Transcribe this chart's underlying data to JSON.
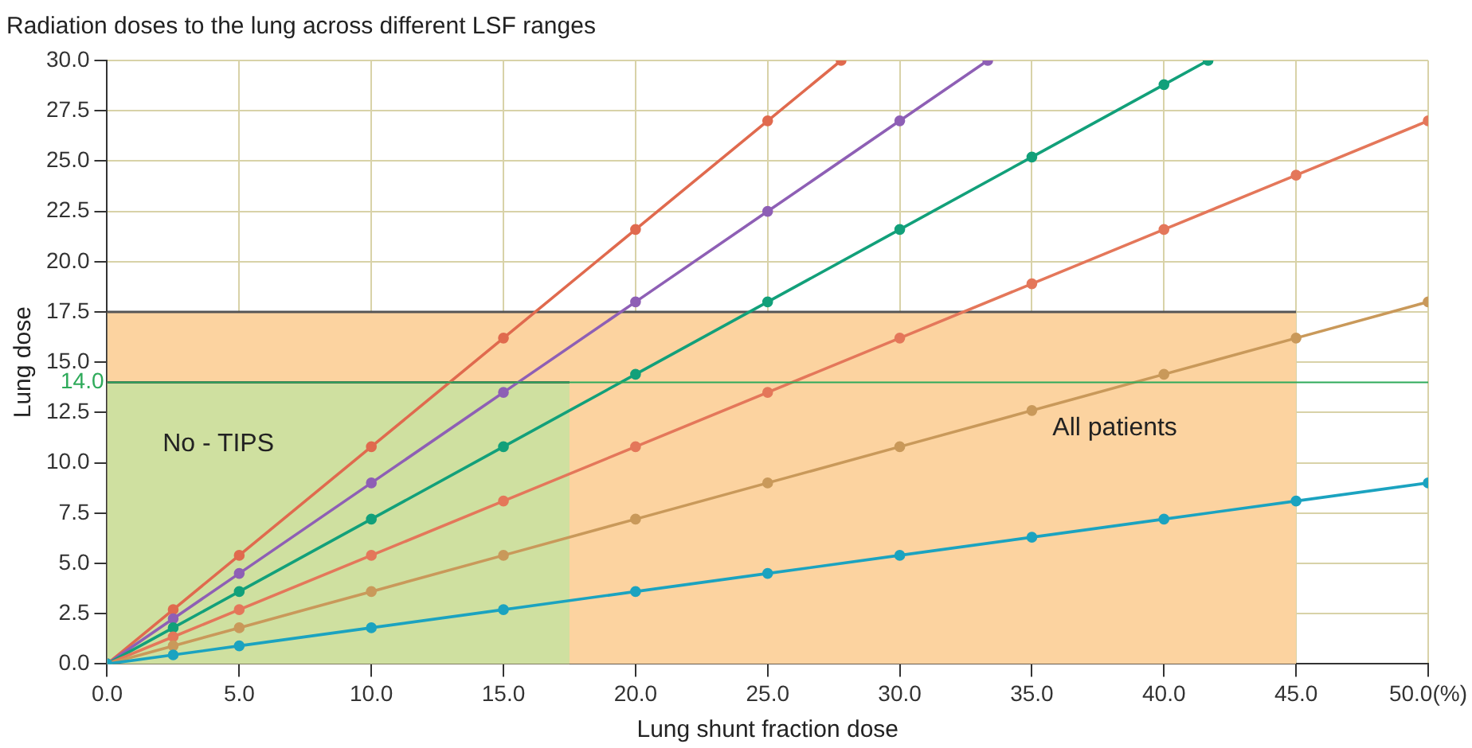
{
  "chart_data": {
    "type": "line",
    "title": "Radiation doses to the lung across different LSF ranges",
    "xlabel": "Lung shunt fraction dose",
    "ylabel": "Lung dose",
    "xlim": [
      0,
      50
    ],
    "ylim": [
      0,
      30
    ],
    "xticks": [
      {
        "value": 0,
        "label": "0.0"
      },
      {
        "value": 5,
        "label": "5.0"
      },
      {
        "value": 10,
        "label": "10.0"
      },
      {
        "value": 15,
        "label": "15.0"
      },
      {
        "value": 20,
        "label": "20.0"
      },
      {
        "value": 25,
        "label": "25.0"
      },
      {
        "value": 30,
        "label": "30.0"
      },
      {
        "value": 35,
        "label": "35.0"
      },
      {
        "value": 40,
        "label": "40.0"
      },
      {
        "value": 45,
        "label": "45.0"
      },
      {
        "value": 50,
        "label": "50.0(%)"
      }
    ],
    "yticks": [
      {
        "value": 0,
        "label": "0.0"
      },
      {
        "value": 2.5,
        "label": "2.5"
      },
      {
        "value": 5,
        "label": "5.0"
      },
      {
        "value": 7.5,
        "label": "7.5"
      },
      {
        "value": 10,
        "label": "10.0"
      },
      {
        "value": 12.5,
        "label": "12.5"
      },
      {
        "value": 15,
        "label": "15.0"
      },
      {
        "value": 17.5,
        "label": "17.5"
      },
      {
        "value": 20,
        "label": "20.0"
      },
      {
        "value": 22.5,
        "label": "22.5"
      },
      {
        "value": 25,
        "label": "25.0"
      },
      {
        "value": 27.5,
        "label": "27.5"
      },
      {
        "value": 30,
        "label": "30.0"
      }
    ],
    "grid": true,
    "legend": false,
    "marker": "circle",
    "ref_lines": [
      {
        "axis": "y",
        "value": 14,
        "label": "14.0",
        "color": "#2eaa5a"
      }
    ],
    "series": [
      {
        "type": "area",
        "marker": "none",
        "name": "All patients",
        "color": "#fcd3a0",
        "x": [
          0,
          45
        ],
        "values": [
          17.5,
          17.5
        ]
      },
      {
        "type": "area",
        "marker": "none",
        "name": "No - TIPS",
        "color": "#cfe0a0",
        "x": [
          0,
          17.5
        ],
        "values": [
          14,
          14
        ]
      },
      {
        "color": "#1ba3c0",
        "x": [
          0,
          2.5,
          5,
          10,
          15,
          20,
          25,
          30,
          35,
          40,
          45,
          50
        ],
        "values": [
          0,
          0.45,
          0.9,
          1.8,
          2.7,
          3.6,
          4.5,
          5.4,
          6.3,
          7.2,
          8.1,
          9.0
        ]
      },
      {
        "color": "#c9995a",
        "x": [
          0,
          2.5,
          5,
          10,
          15,
          20,
          25,
          30,
          35,
          40,
          45,
          50
        ],
        "values": [
          0,
          0.9,
          1.8,
          3.6,
          5.4,
          7.2,
          9.0,
          10.8,
          12.6,
          14.4,
          16.2,
          18.0
        ]
      },
      {
        "color": "#e4775a",
        "x": [
          0,
          2.5,
          5,
          10,
          15,
          20,
          25,
          30,
          35,
          40,
          45,
          50
        ],
        "values": [
          0,
          1.35,
          2.7,
          5.4,
          8.1,
          10.8,
          13.5,
          16.2,
          18.9,
          21.6,
          24.3,
          27.0
        ]
      },
      {
        "color": "#12a07a",
        "x": [
          0,
          2.5,
          5,
          10,
          15,
          20,
          25,
          30,
          35,
          40,
          41.67
        ],
        "values": [
          0,
          1.8,
          3.6,
          7.2,
          10.8,
          14.4,
          18.0,
          21.6,
          25.2,
          28.8,
          30
        ]
      },
      {
        "color": "#8e5fb5",
        "x": [
          0,
          2.5,
          5,
          10,
          15,
          20,
          25,
          30,
          33.33
        ],
        "values": [
          0,
          2.25,
          4.5,
          9,
          13.5,
          18,
          22.5,
          27,
          30
        ]
      },
      {
        "color": "#e06a4e",
        "x": [
          0,
          2.5,
          5,
          10,
          15,
          20,
          25,
          27.78
        ],
        "values": [
          0,
          2.7,
          5.4,
          10.8,
          16.2,
          21.6,
          27,
          30
        ]
      }
    ]
  }
}
